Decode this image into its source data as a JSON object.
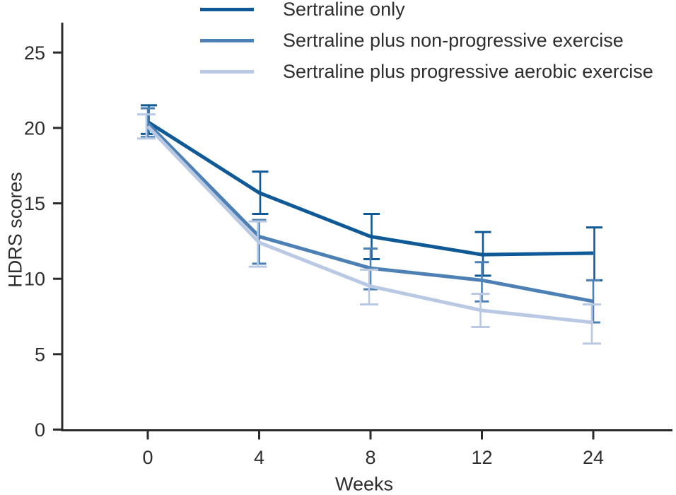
{
  "chart_data": {
    "type": "line",
    "title": "",
    "xlabel": "Weeks",
    "ylabel": "HDRS scores",
    "categories": [
      0,
      4,
      8,
      12,
      24
    ],
    "y_ticks": [
      0,
      5,
      10,
      15,
      20,
      25
    ],
    "ylim": [
      0,
      27
    ],
    "grid": false,
    "legend_position": "top",
    "error_bars": true,
    "axis_color": "#2b2b2b",
    "text_color": "#2e2e2e",
    "series": [
      {
        "name": "Sertraline only",
        "color": "#0f5a96",
        "values": [
          20.4,
          15.7,
          12.8,
          11.6,
          11.7
        ],
        "ci_low": [
          19.6,
          14.3,
          11.3,
          10.2,
          9.9
        ],
        "ci_high": [
          21.5,
          17.1,
          14.3,
          13.1,
          13.4
        ]
      },
      {
        "name": "Sertraline plus non-progressive exercise",
        "color": "#4d80b5",
        "values": [
          20.3,
          12.8,
          10.7,
          9.9,
          8.5
        ],
        "ci_low": [
          19.4,
          11.0,
          9.3,
          8.5,
          7.1
        ],
        "ci_high": [
          21.3,
          13.9,
          12.0,
          11.1,
          9.9
        ]
      },
      {
        "name": "Sertraline plus progressive aerobic exercise",
        "color": "#b9c9e3",
        "values": [
          20.1,
          12.4,
          9.5,
          7.9,
          7.1
        ],
        "ci_low": [
          19.3,
          10.8,
          8.3,
          6.8,
          5.7
        ],
        "ci_high": [
          20.9,
          13.8,
          10.6,
          9.0,
          8.3
        ]
      }
    ]
  }
}
